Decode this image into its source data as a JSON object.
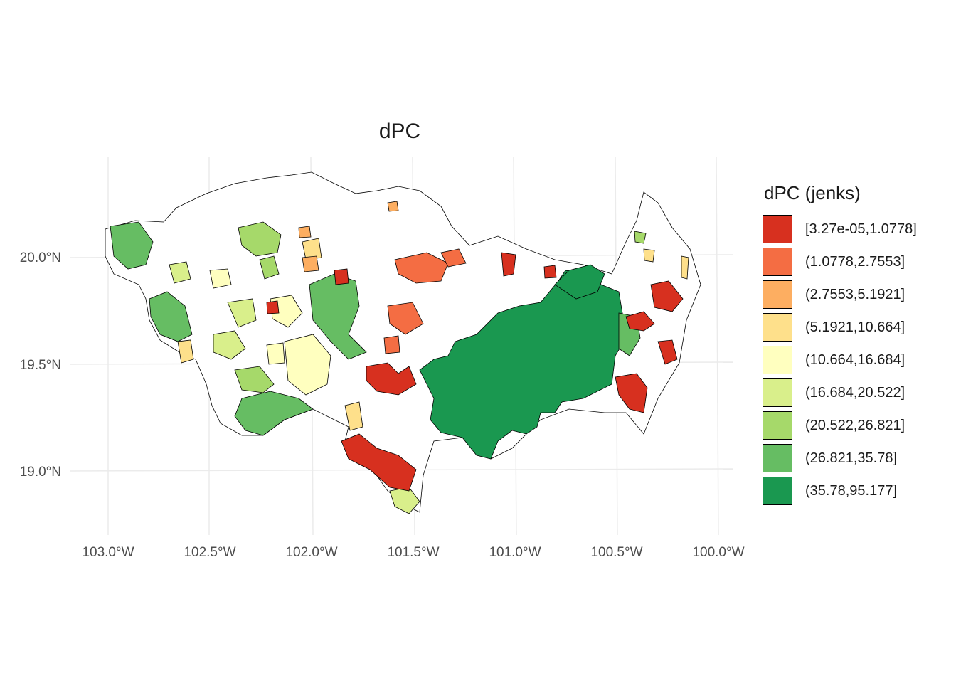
{
  "title": "dPC",
  "legend": {
    "title": "dPC (jenks)",
    "classes": [
      {
        "label": "[3.27e-05,1.0778]",
        "color": "#d7301f"
      },
      {
        "label": "(1.0778,2.7553]",
        "color": "#f46d43"
      },
      {
        "label": "(2.7553,5.1921]",
        "color": "#fdae61"
      },
      {
        "label": "(5.1921,10.664]",
        "color": "#fee08b"
      },
      {
        "label": "(10.664,16.684]",
        "color": "#ffffbf"
      },
      {
        "label": "(16.684,20.522]",
        "color": "#d9ef8b"
      },
      {
        "label": "(20.522,26.821]",
        "color": "#a6d96a"
      },
      {
        "label": "(26.821,35.78]",
        "color": "#66bd63"
      },
      {
        "label": "(35.78,95.177]",
        "color": "#1a9850"
      }
    ]
  },
  "axes": {
    "x_ticks": [
      "103.0°W",
      "102.5°W",
      "102.0°W",
      "101.5°W",
      "101.0°W",
      "100.5°W",
      "100.0°W"
    ],
    "y_ticks": [
      "20.0°N",
      "19.5°N",
      "19.0°N"
    ]
  }
}
